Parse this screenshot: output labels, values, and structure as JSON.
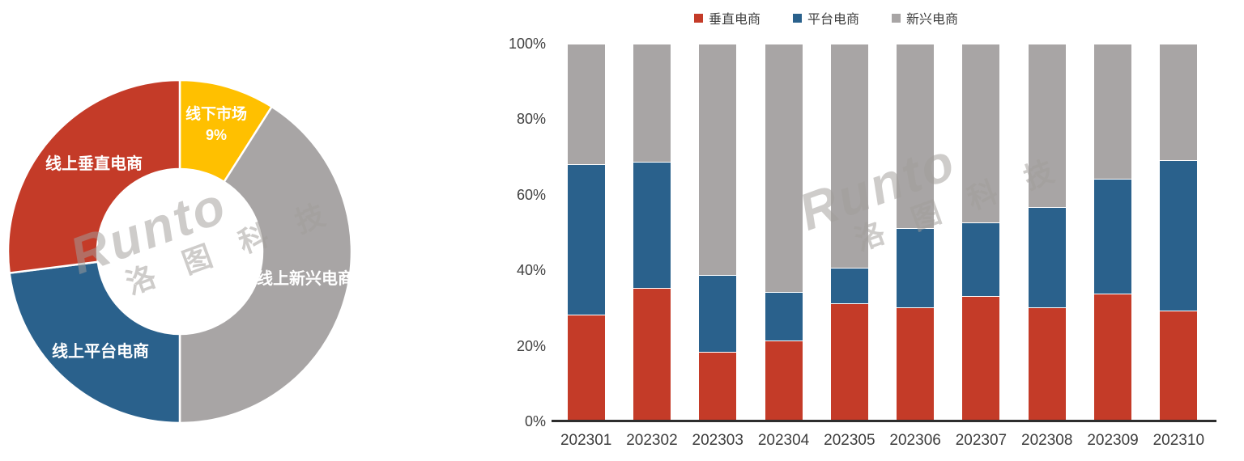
{
  "watermark": {
    "brand": "Runto",
    "cn": "洛 图 科 技"
  },
  "colors": {
    "vertical_red": "#C43B28",
    "platform_blue": "#2A618C",
    "emerging_gray": "#A8A5A5",
    "offline_yellow": "#FFC000",
    "axis_text": "#404040",
    "axis_line": "#2D2D2D",
    "watermark_gray": "#A29E9B"
  },
  "chart_data": [
    {
      "type": "pie",
      "subtype": "donut",
      "labels": [
        "线下市场",
        "线上新兴电商",
        "线上平台电商",
        "线上垂直电商"
      ],
      "values": [
        9,
        41,
        23,
        27
      ],
      "colors": [
        "#FFC000",
        "#A8A5A5",
        "#2A618C",
        "#C43B28"
      ],
      "pct_label": "9%",
      "start_angle_deg": 0,
      "direction": "clockwise",
      "inner_radius_ratio": 0.48,
      "legend_position": "none",
      "data_label_color": "#FFFFFF"
    },
    {
      "type": "bar",
      "subtype": "stacked-100",
      "categories": [
        "202301",
        "202302",
        "202303",
        "202304",
        "202305",
        "202306",
        "202307",
        "202308",
        "202309",
        "202310"
      ],
      "series": [
        {
          "name": "垂直电商",
          "color": "#C43B28",
          "values": [
            28,
            35,
            18,
            21,
            31,
            30,
            33,
            30,
            33.5,
            29
          ]
        },
        {
          "name": "平台电商",
          "color": "#2A618C",
          "values": [
            40,
            33.5,
            20.5,
            13,
            9.5,
            21,
            19.5,
            26.5,
            30.5,
            40
          ]
        },
        {
          "name": "新兴电商",
          "color": "#A8A5A5",
          "values": [
            32,
            31.5,
            61.5,
            66,
            59.5,
            49,
            47.5,
            43.5,
            36,
            31
          ]
        }
      ],
      "y_ticks": [
        "0%",
        "20%",
        "40%",
        "60%",
        "80%",
        "100%"
      ],
      "y_tick_values": [
        0,
        20,
        40,
        60,
        80,
        100
      ],
      "ylim": [
        0,
        100
      ],
      "legend_position": "top",
      "gridlines": false
    }
  ]
}
